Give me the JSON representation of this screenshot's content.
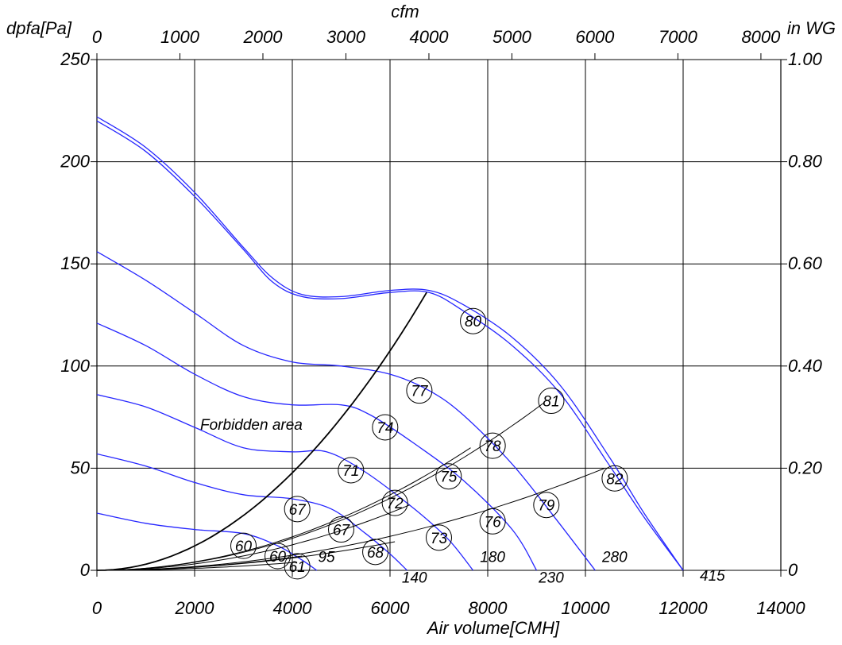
{
  "chart_data": {
    "type": "line",
    "axes": {
      "x_bottom": {
        "label": "Air volume[CMH]",
        "range": [
          0,
          14000
        ],
        "ticks": [
          0,
          2000,
          4000,
          6000,
          8000,
          10000,
          12000,
          14000
        ]
      },
      "x_top": {
        "label": "cfm",
        "range": [
          0,
          8240
        ],
        "ticks": [
          0,
          1000,
          2000,
          3000,
          4000,
          5000,
          6000,
          7000,
          8000
        ]
      },
      "y_left": {
        "label": "dpfa[Pa]",
        "range": [
          0,
          250
        ],
        "ticks": [
          0,
          50,
          100,
          150,
          200,
          250
        ]
      },
      "y_right": {
        "label": "in WG",
        "range": [
          0,
          1.0
        ],
        "ticks": [
          "0",
          "0.20",
          "0.40",
          "0.60",
          "0.80",
          "1.00"
        ]
      },
      "grid": true
    },
    "forbidden_area_label": "Forbidden area",
    "fan_curves": [
      {
        "points": [
          [
            0,
            222
          ],
          [
            1000,
            207
          ],
          [
            2000,
            185
          ],
          [
            3000,
            158
          ],
          [
            3600,
            143
          ],
          [
            4200,
            135
          ],
          [
            5000,
            134
          ],
          [
            6000,
            137
          ],
          [
            6800,
            137
          ],
          [
            7500,
            130
          ],
          [
            8500,
            114
          ],
          [
            9500,
            90
          ],
          [
            10500,
            55
          ],
          [
            11200,
            28
          ],
          [
            12000,
            0
          ]
        ]
      },
      {
        "points": [
          [
            0,
            220
          ],
          [
            1000,
            205
          ],
          [
            2000,
            183
          ],
          [
            3000,
            157
          ],
          [
            3600,
            141
          ],
          [
            4200,
            134
          ],
          [
            5000,
            133
          ],
          [
            6000,
            136
          ],
          [
            6800,
            136
          ],
          [
            7500,
            127
          ],
          [
            8500,
            110
          ],
          [
            9500,
            86
          ],
          [
            10500,
            51
          ],
          [
            11200,
            26
          ],
          [
            12000,
            0
          ]
        ]
      },
      {
        "points": [
          [
            0,
            156
          ],
          [
            1000,
            142
          ],
          [
            2000,
            126
          ],
          [
            3000,
            110
          ],
          [
            4000,
            102
          ],
          [
            5000,
            100
          ],
          [
            6000,
            96
          ],
          [
            6800,
            88
          ],
          [
            7500,
            76
          ],
          [
            8500,
            52
          ],
          [
            9400,
            25
          ],
          [
            10200,
            0
          ]
        ]
      },
      {
        "points": [
          [
            0,
            121
          ],
          [
            1000,
            110
          ],
          [
            2000,
            96
          ],
          [
            3000,
            85
          ],
          [
            4000,
            81
          ],
          [
            5000,
            81
          ],
          [
            5600,
            76
          ],
          [
            6500,
            62
          ],
          [
            7500,
            44
          ],
          [
            8500,
            20
          ],
          [
            9000,
            0
          ]
        ]
      },
      {
        "points": [
          [
            0,
            86
          ],
          [
            1000,
            80
          ],
          [
            2000,
            70
          ],
          [
            3000,
            60
          ],
          [
            4000,
            58
          ],
          [
            4700,
            58
          ],
          [
            5500,
            48
          ],
          [
            6500,
            30
          ],
          [
            7200,
            15
          ],
          [
            7700,
            0
          ]
        ]
      },
      {
        "points": [
          [
            0,
            57
          ],
          [
            1000,
            51
          ],
          [
            2000,
            43
          ],
          [
            3000,
            37
          ],
          [
            4000,
            35
          ],
          [
            4800,
            30
          ],
          [
            5500,
            18
          ],
          [
            6000,
            8
          ],
          [
            6350,
            0
          ]
        ]
      },
      {
        "points": [
          [
            0,
            28
          ],
          [
            1000,
            23
          ],
          [
            2000,
            20
          ],
          [
            3000,
            18
          ],
          [
            3700,
            12
          ],
          [
            4200,
            5
          ],
          [
            4500,
            0
          ]
        ]
      }
    ],
    "system_curves": [
      {
        "label": "95",
        "end": [
          4200,
          7
        ]
      },
      {
        "label": "140",
        "end": [
          6100,
          14
        ]
      },
      {
        "label": "180",
        "end": [
          6400,
          32
        ]
      },
      {
        "label": "230",
        "end": [
          7650,
          60
        ]
      },
      {
        "label": "280",
        "end": [
          9150,
          82
        ]
      },
      {
        "label": "415",
        "end": [
          10400,
          50
        ]
      }
    ],
    "forbidden_boundary": {
      "end": [
        6750,
        136
      ]
    },
    "system_curve_low_end": [
      4100,
      4
    ],
    "efficiency_points": [
      {
        "label": "60",
        "x": 3000,
        "y": 12
      },
      {
        "label": "60",
        "x": 3700,
        "y": 7
      },
      {
        "label": "61",
        "x": 4100,
        "y": 2
      },
      {
        "label": "67",
        "x": 4100,
        "y": 30
      },
      {
        "label": "67",
        "x": 5000,
        "y": 20
      },
      {
        "label": "68",
        "x": 5700,
        "y": 9
      },
      {
        "label": "71",
        "x": 5200,
        "y": 49
      },
      {
        "label": "72",
        "x": 6100,
        "y": 33
      },
      {
        "label": "73",
        "x": 7000,
        "y": 16
      },
      {
        "label": "74",
        "x": 5900,
        "y": 70
      },
      {
        "label": "75",
        "x": 7200,
        "y": 46
      },
      {
        "label": "76",
        "x": 8100,
        "y": 24
      },
      {
        "label": "77",
        "x": 6600,
        "y": 88
      },
      {
        "label": "78",
        "x": 8100,
        "y": 61
      },
      {
        "label": "79",
        "x": 9200,
        "y": 32
      },
      {
        "label": "80",
        "x": 7700,
        "y": 122
      },
      {
        "label": "81",
        "x": 9300,
        "y": 83
      },
      {
        "label": "82",
        "x": 10600,
        "y": 45
      }
    ],
    "curve_labels": [
      {
        "label": "95",
        "x": 4700,
        "y": 4
      },
      {
        "label": "140",
        "x": 6500,
        "y": -6
      },
      {
        "label": "180",
        "x": 8100,
        "y": 4
      },
      {
        "label": "230",
        "x": 9300,
        "y": -6
      },
      {
        "label": "280",
        "x": 10600,
        "y": 4
      },
      {
        "label": "415",
        "x": 12600,
        "y": -5
      }
    ]
  }
}
